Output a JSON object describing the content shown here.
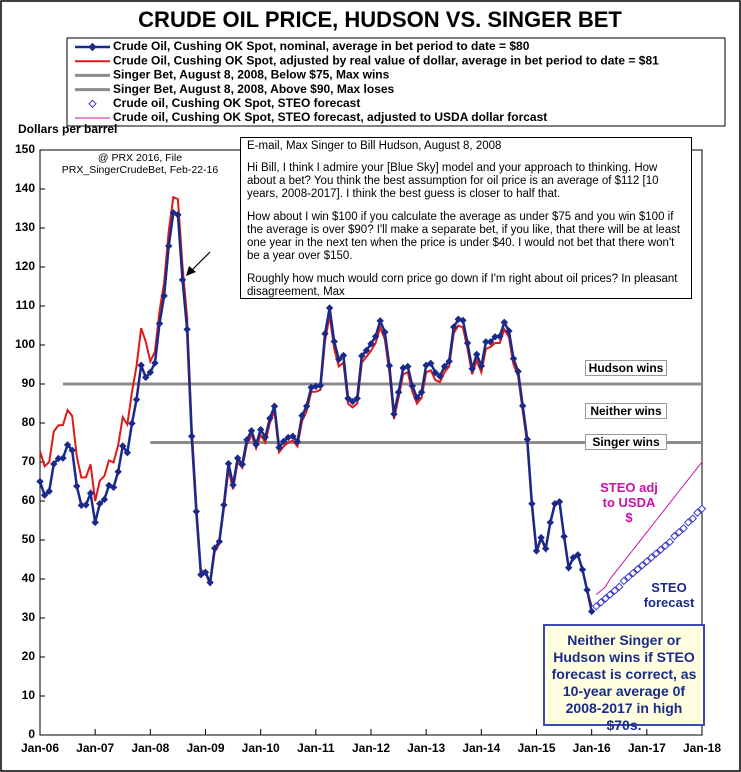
{
  "chart_data": {
    "type": "line",
    "title": "CRUDE OIL PRICE, HUDSON VS. SINGER BET",
    "ylabel": "Dollars per barrel",
    "note": "@ PRX 2016, File PRX_SingerCrudeBet, Feb-22-16",
    "email": {
      "heading": "E-mail, Max Singer to Bill Hudson, August 8, 2008",
      "paragraphs": [
        "Hi Bill, I think I admire your [Blue Sky] model and your approach to thinking. How about a bet? You think the best assumption for oil price is an average of $112 [10 years, 2008-2017]. I think the best guess is closer to half that.",
        "How about I win $100 if you calculate the average as under $75 and you win $100 if the average is over $90? I'll make a separate bet, if you like, that there will be at least one year in the next ten when the price is under $40. I would not bet that there won't be a year over $150.",
        "Roughly how much would corn price go down if I'm right about oil prices? In pleasant disagreement, Max"
      ]
    },
    "zone_labels": [
      {
        "text": "Hudson wins",
        "y": 90
      },
      {
        "text": "Neither wins",
        "y": 79
      },
      {
        "text": "Singer wins",
        "y": 71
      }
    ],
    "steo_adj_label": "STEO adj to USDA $",
    "steo_label": "STEO forecast",
    "conclusion": "Neither Singer or Hudson wins if STEO forecast is correct, as 10-year average 0f 2008-2017 in high $70s.",
    "x": [
      "2006-01",
      "2006-02",
      "2006-03",
      "2006-04",
      "2006-05",
      "2006-06",
      "2006-07",
      "2006-08",
      "2006-09",
      "2006-10",
      "2006-11",
      "2006-12",
      "2007-01",
      "2007-02",
      "2007-03",
      "2007-04",
      "2007-05",
      "2007-06",
      "2007-07",
      "2007-08",
      "2007-09",
      "2007-10",
      "2007-11",
      "2007-12",
      "2008-01",
      "2008-02",
      "2008-03",
      "2008-04",
      "2008-05",
      "2008-06",
      "2008-07",
      "2008-08",
      "2008-09",
      "2008-10",
      "2008-11",
      "2008-12",
      "2009-01",
      "2009-02",
      "2009-03",
      "2009-04",
      "2009-05",
      "2009-06",
      "2009-07",
      "2009-08",
      "2009-09",
      "2009-10",
      "2009-11",
      "2009-12",
      "2010-01",
      "2010-02",
      "2010-03",
      "2010-04",
      "2010-05",
      "2010-06",
      "2010-07",
      "2010-08",
      "2010-09",
      "2010-10",
      "2010-11",
      "2010-12",
      "2011-01",
      "2011-02",
      "2011-03",
      "2011-04",
      "2011-05",
      "2011-06",
      "2011-07",
      "2011-08",
      "2011-09",
      "2011-10",
      "2011-11",
      "2011-12",
      "2012-01",
      "2012-02",
      "2012-03",
      "2012-04",
      "2012-05",
      "2012-06",
      "2012-07",
      "2012-08",
      "2012-09",
      "2012-10",
      "2012-11",
      "2012-12",
      "2013-01",
      "2013-02",
      "2013-03",
      "2013-04",
      "2013-05",
      "2013-06",
      "2013-07",
      "2013-08",
      "2013-09",
      "2013-10",
      "2013-11",
      "2013-12",
      "2014-01",
      "2014-02",
      "2014-03",
      "2014-04",
      "2014-05",
      "2014-06",
      "2014-07",
      "2014-08",
      "2014-09",
      "2014-10",
      "2014-11",
      "2014-12",
      "2015-01",
      "2015-02",
      "2015-03",
      "2015-04",
      "2015-05",
      "2015-06",
      "2015-07",
      "2015-08",
      "2015-09",
      "2015-10",
      "2015-11",
      "2015-12",
      "2016-01"
    ],
    "series": [
      {
        "name": "Singer Bet, August 8, 2008, Below $75, Max wins",
        "color": "#8c8c8c",
        "line_width": 3,
        "x": [
          "2008-01",
          "2018-01"
        ],
        "values": [
          75,
          75
        ]
      },
      {
        "name": "Singer Bet, August 8, 2008, Above $90, Max loses",
        "color": "#8c8c8c",
        "line_width": 3,
        "x": [
          "2006-06",
          "2018-01"
        ],
        "values": [
          90,
          90
        ]
      },
      {
        "name": "Crude Oil, Cushing OK Spot, adjusted by real value of dollar, average in bet period to date = $81",
        "color": "#e01818",
        "line_width": 2,
        "values": [
          72.8,
          68.9,
          70,
          77.8,
          79.4,
          79.5,
          83.3,
          81.8,
          71.5,
          66,
          66.1,
          69.4,
          60,
          65.2,
          66.4,
          70.4,
          69.9,
          74.3,
          81.5,
          79.6,
          87.9,
          94.6,
          104.3,
          100.9,
          95.8,
          98.3,
          108.7,
          116,
          129.2,
          137.9,
          137.4,
          120.2,
          107.1,
          78.9,
          59,
          42.3,
          41.7,
          38.5,
          47,
          49,
          58,
          68,
          63,
          70,
          68.5,
          74.5,
          77,
          73.5,
          77,
          75,
          80,
          83,
          72.5,
          74,
          75,
          75.5,
          74,
          80.5,
          83,
          88,
          88,
          88.5,
          101,
          107.5,
          99,
          94.5,
          95.5,
          85,
          84,
          85,
          95.5,
          97,
          98.5,
          100.5,
          104.5,
          101.5,
          93,
          81,
          86.5,
          92.5,
          93,
          88,
          85,
          86.5,
          93,
          93.5,
          91,
          90.5,
          93,
          94.5,
          103,
          105,
          104.5,
          99,
          92.5,
          96,
          93,
          99,
          99.5,
          100.5,
          100.5,
          104,
          102,
          95,
          92,
          83,
          74.5,
          58.5,
          46.8,
          50.3,
          47.5,
          54.2,
          59,
          59.5,
          50.7,
          42.8,
          45.4,
          46.1,
          42.3,
          37.1,
          33
        ]
      },
      {
        "name": "Crude Oil, Cushing OK Spot, nominal, average in bet period to date = $80",
        "color": "#1a2a8a",
        "line_width": 2.5,
        "marker": "diamond",
        "values": [
          65,
          61.5,
          62.5,
          69.5,
          70.9,
          71,
          74.4,
          73,
          63.8,
          58.9,
          59,
          62,
          54.5,
          59.3,
          60.4,
          64,
          63.5,
          67.5,
          74.1,
          72.4,
          79.9,
          86,
          94.8,
          91.7,
          93,
          95.4,
          105.5,
          112.6,
          125.4,
          133.9,
          133.4,
          116.7,
          104,
          76.6,
          57.3,
          41.1,
          41.7,
          39.1,
          47.9,
          49.6,
          59,
          69.6,
          64.1,
          71,
          69.4,
          75.7,
          78,
          74.5,
          78.3,
          76.4,
          81.2,
          84.3,
          73.7,
          75.3,
          76.3,
          76.6,
          75.2,
          81.9,
          84.3,
          89.1,
          89.4,
          89.6,
          102.9,
          109.5,
          100.9,
          96.3,
          97.3,
          86.3,
          85.5,
          86.3,
          97.2,
          98.6,
          100.3,
          102.2,
          106.2,
          103.3,
          94.7,
          82.3,
          87.9,
          94.1,
          94.5,
          89.5,
          86.5,
          87.9,
          94.8,
          95.3,
          92.9,
          92,
          94.5,
          95.8,
          104.6,
          106.6,
          106.3,
          100.5,
          93.9,
          97.6,
          94.6,
          100.8,
          100.8,
          102.1,
          102.2,
          105.8,
          103.6,
          96.5,
          93.2,
          84.4,
          75.8,
          59.3,
          47.2,
          50.6,
          47.8,
          54.5,
          59.3,
          59.8,
          50.9,
          42.9,
          45.5,
          46.2,
          42.4,
          37.2,
          31.7
        ]
      },
      {
        "name": "Crude oil, Cushing OK Spot, STEO forecast",
        "color": "#3333cc",
        "line_width": 0,
        "marker": "hollow-diamond",
        "x": [
          "2016-02",
          "2016-03",
          "2016-04",
          "2016-05",
          "2016-06",
          "2016-07",
          "2016-08",
          "2016-09",
          "2016-10",
          "2016-11",
          "2016-12",
          "2017-01",
          "2017-02",
          "2017-03",
          "2017-04",
          "2017-05",
          "2017-06",
          "2017-07",
          "2017-08",
          "2017-09",
          "2017-10",
          "2017-11",
          "2017-12",
          "2018-01"
        ],
        "values": [
          33,
          34,
          35,
          36,
          37,
          38,
          39.5,
          40.5,
          41.5,
          42.5,
          43.5,
          44.5,
          45.5,
          46.5,
          47.5,
          48.5,
          49.5,
          51,
          52,
          53,
          54.5,
          55.5,
          57,
          58
        ]
      },
      {
        "name": "Crude oil, Cushing OK Spot, STEO forecast, adjusted to USDA dollar forcast",
        "color": "#cc10aa",
        "line_width": 1,
        "x": [
          "2016-02",
          "2016-03",
          "2016-04",
          "2016-05",
          "2016-06",
          "2016-07",
          "2016-08",
          "2016-09",
          "2016-10",
          "2016-11",
          "2016-12",
          "2017-01",
          "2017-02",
          "2017-03",
          "2017-04",
          "2017-05",
          "2017-06",
          "2017-07",
          "2017-08",
          "2017-09",
          "2017-10",
          "2017-11",
          "2017-12",
          "2018-01"
        ],
        "values": [
          36,
          37,
          38,
          40,
          41.5,
          43,
          44.5,
          46,
          47.5,
          49,
          50.5,
          52,
          53.5,
          55,
          56.5,
          58,
          59.5,
          61,
          62.5,
          64,
          65.5,
          67,
          68.5,
          70
        ]
      }
    ],
    "legend_order": [
      3,
      2,
      0,
      1,
      4,
      5
    ],
    "xlim": [
      "2006-01",
      "2018-01"
    ],
    "xticks": [
      {
        "value": "2006-01",
        "label": "Jan-06"
      },
      {
        "value": "2007-01",
        "label": "Jan-07"
      },
      {
        "value": "2008-01",
        "label": "Jan-08"
      },
      {
        "value": "2009-01",
        "label": "Jan-09"
      },
      {
        "value": "2010-01",
        "label": "Jan-10"
      },
      {
        "value": "2011-01",
        "label": "Jan-11"
      },
      {
        "value": "2012-01",
        "label": "Jan-12"
      },
      {
        "value": "2013-01",
        "label": "Jan-13"
      },
      {
        "value": "2014-01",
        "label": "Jan-14"
      },
      {
        "value": "2015-01",
        "label": "Jan-15"
      },
      {
        "value": "2016-01",
        "label": "Jan-16"
      },
      {
        "value": "2017-01",
        "label": "Jan-17"
      },
      {
        "value": "2018-01",
        "label": "Jan-18"
      }
    ],
    "ylim": [
      0,
      150
    ],
    "yticks": [
      0,
      10,
      20,
      30,
      40,
      50,
      60,
      70,
      80,
      90,
      100,
      110,
      120,
      130,
      140,
      150
    ],
    "grid": false
  }
}
